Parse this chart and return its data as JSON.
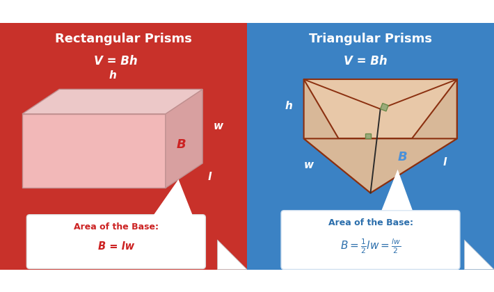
{
  "left_bg_color": "#C8312A",
  "right_bg_color": "#3B82C4",
  "left_title": "Rectangular Prisms",
  "right_title": "Triangular Prisms",
  "formula": "V = Bh",
  "title_fontsize": 13,
  "formula_fontsize": 12,
  "label_fontsize": 11,
  "white": "#FFFFFF",
  "red_label": "#CC2222",
  "blue_label": "#2C6FAC",
  "rect_face_color": "#F2B8B8",
  "rect_side_color": "#D8A0A0",
  "rect_top_color": "#ECC8C8",
  "tri_face_color": "#E8C8A8",
  "tri_front_color": "#D8B898",
  "tri_edge_color": "#8B3010",
  "right_angle_color": "#6B8B4B",
  "right_angle_fill": "#9BAB7B"
}
